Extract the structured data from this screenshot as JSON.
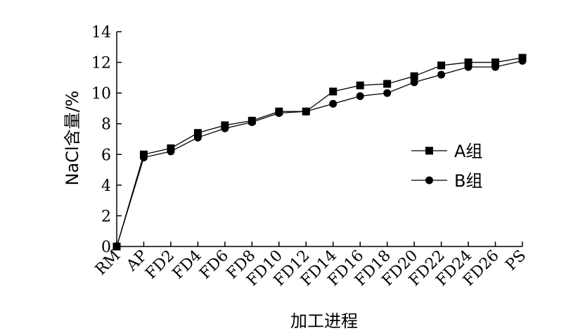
{
  "chart_data": {
    "type": "line",
    "xlabel": "加工进程",
    "ylabel": "NaCl含量/%",
    "ylim": [
      0,
      14
    ],
    "yticks": [
      0,
      2,
      4,
      6,
      8,
      10,
      12,
      14
    ],
    "categories": [
      "RM",
      "AP",
      "FD2",
      "FD4",
      "FD6",
      "FD8",
      "FD10",
      "FD12",
      "FD14",
      "FD16",
      "FD18",
      "FD20",
      "FD22",
      "FD24",
      "FD26",
      "PS"
    ],
    "series": [
      {
        "name": "A组",
        "marker": "square",
        "values": [
          0,
          6.0,
          6.4,
          7.4,
          7.9,
          8.2,
          8.8,
          8.8,
          10.1,
          10.5,
          10.6,
          11.1,
          11.8,
          12.0,
          12.0,
          12.3
        ]
      },
      {
        "name": "B组",
        "marker": "circle",
        "values": [
          0,
          5.8,
          6.2,
          7.1,
          7.7,
          8.1,
          8.7,
          8.8,
          9.3,
          9.8,
          10.0,
          10.7,
          11.2,
          11.7,
          11.7,
          12.1
        ]
      }
    ],
    "legend_position": "right",
    "grid": false,
    "colors": {
      "line": "#000000",
      "marker": "#000000"
    }
  }
}
